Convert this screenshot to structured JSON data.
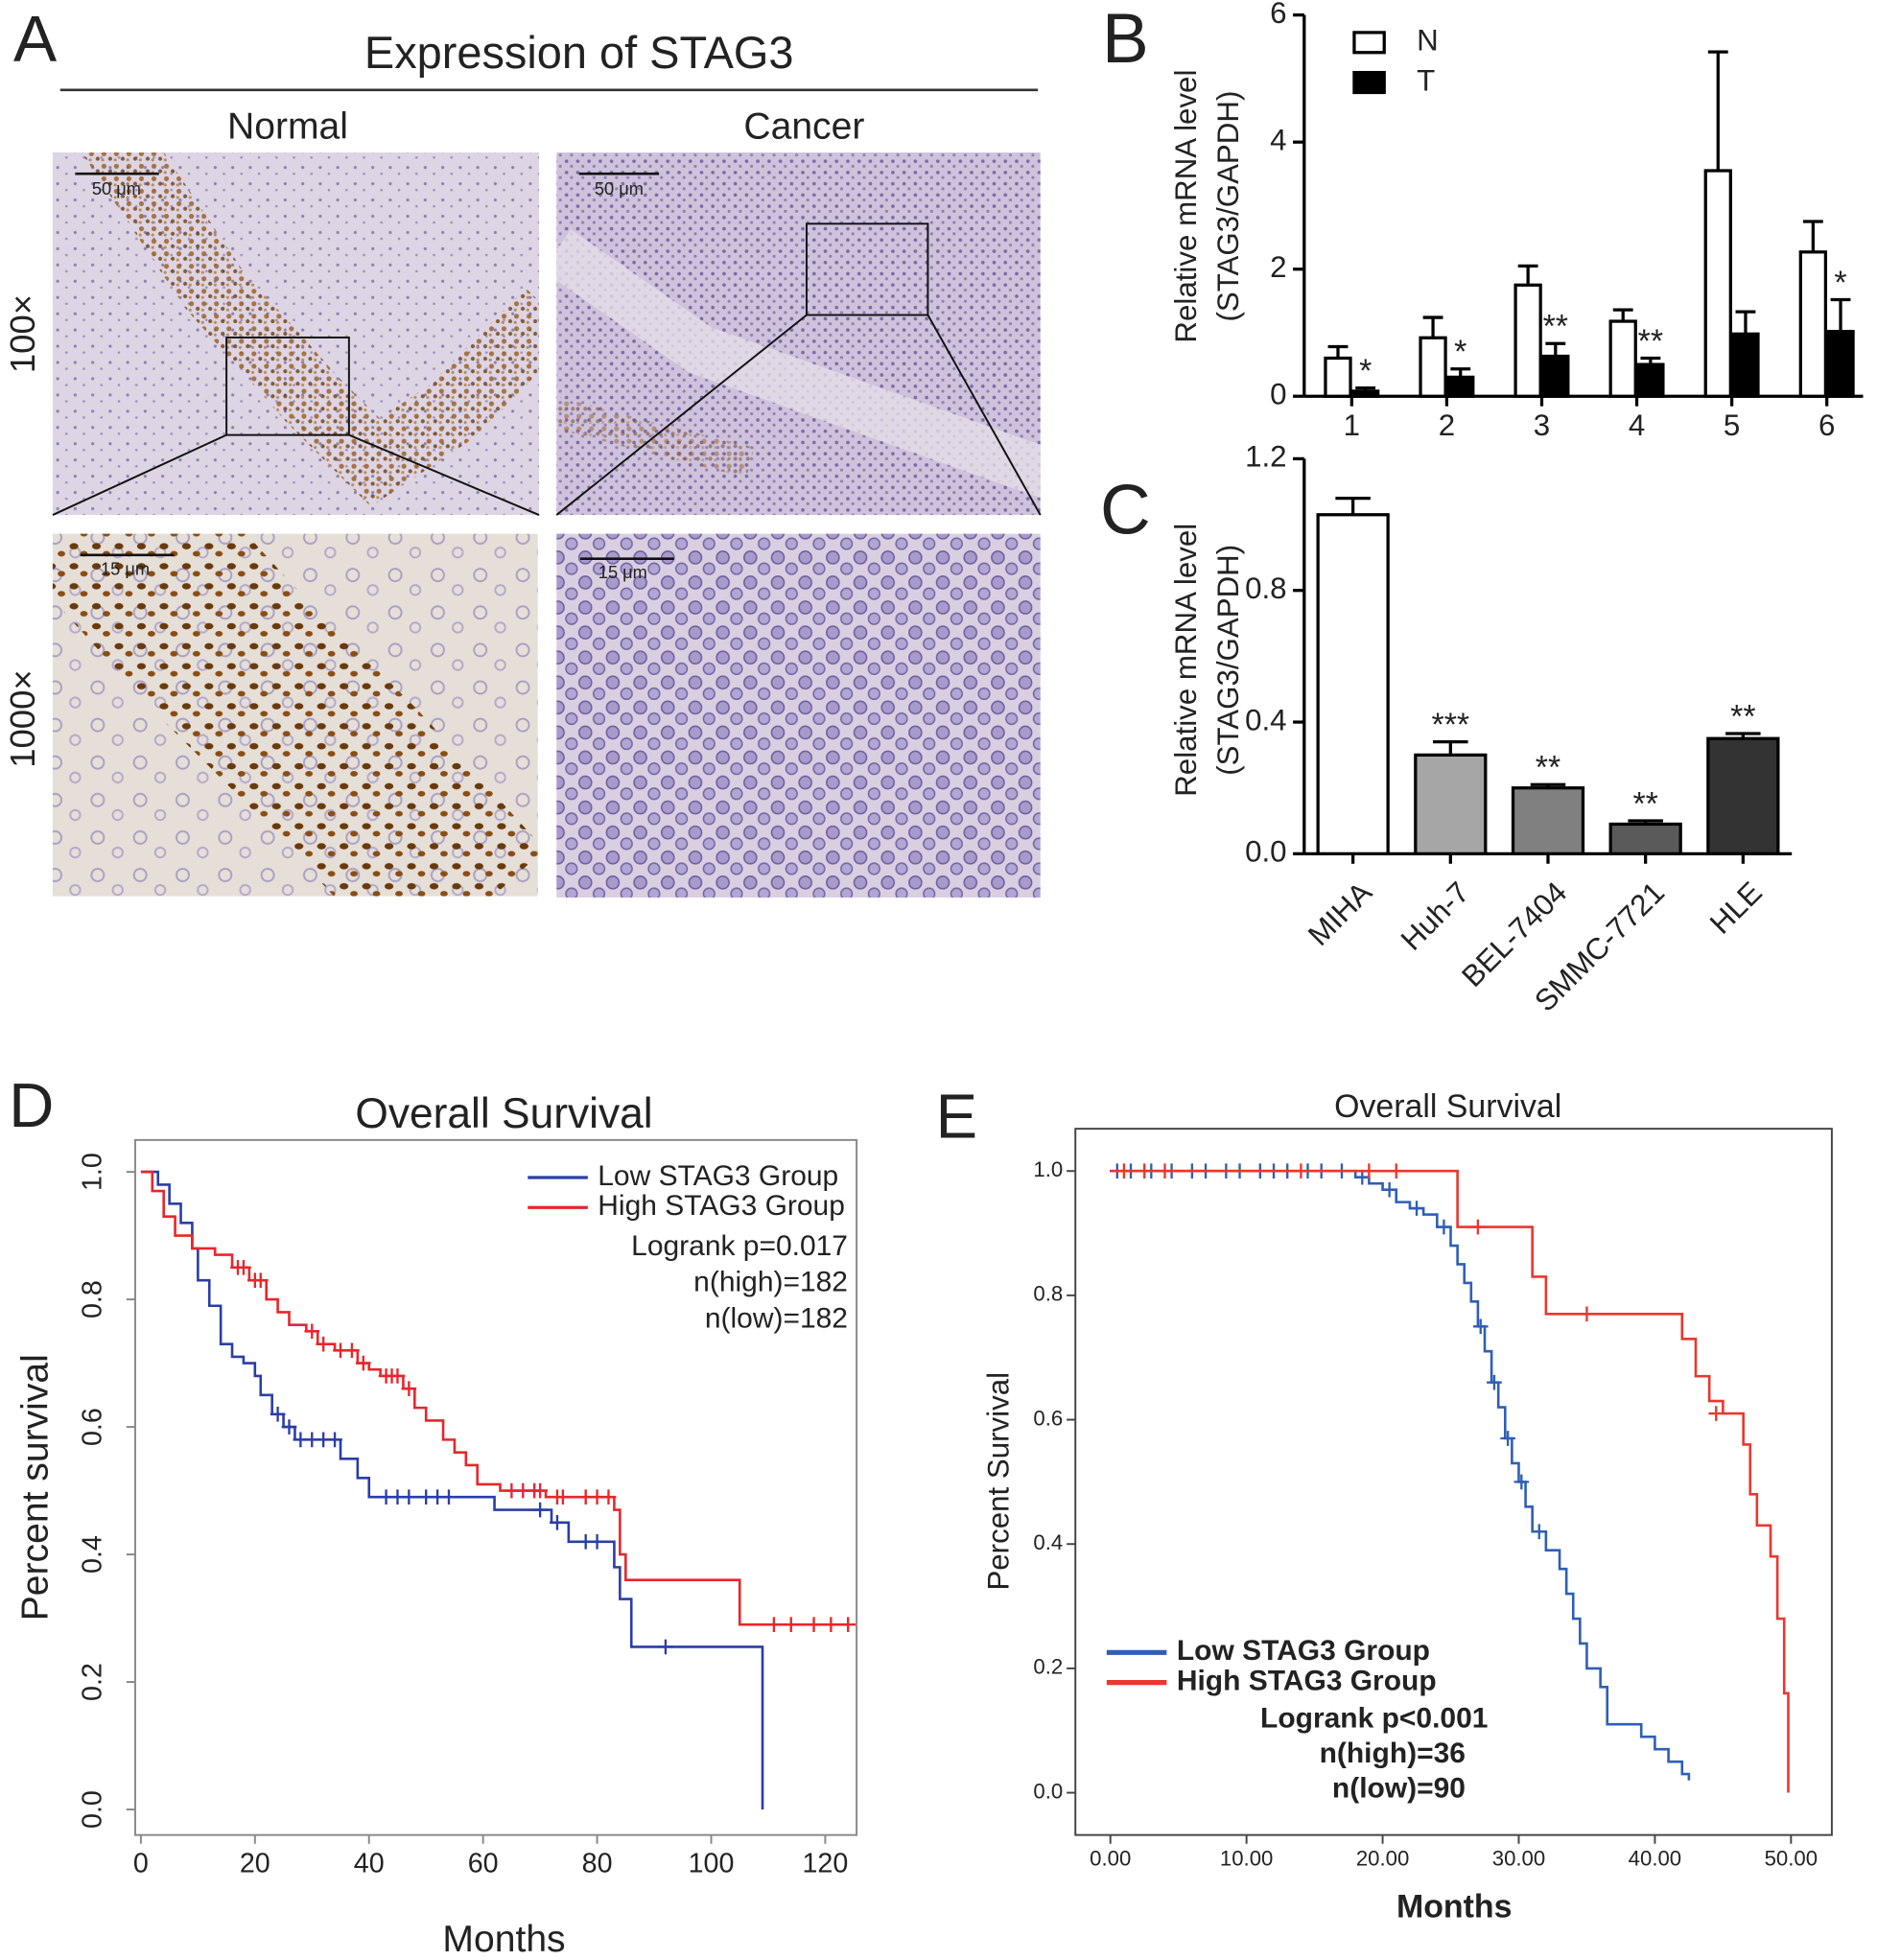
{
  "panel_a": {
    "label": "A",
    "title": "Expression of STAG3",
    "columns": [
      "Normal",
      "Cancer"
    ],
    "rows": [
      "100×",
      "1000×"
    ],
    "scale_bars": [
      "50 μm",
      "50 μm",
      "15 μm",
      "15 μm"
    ]
  },
  "chart_data": [
    {
      "type": "bar",
      "label": "B",
      "ylabel": [
        "Relative mRNA level",
        "(STAG3/GAPDH)"
      ],
      "categories": [
        "1",
        "2",
        "3",
        "4",
        "5",
        "6"
      ],
      "series": [
        {
          "name": "N",
          "color": "#ffffff",
          "values": [
            0.6,
            0.92,
            1.75,
            1.18,
            3.55,
            2.27
          ],
          "errors": [
            0.18,
            0.32,
            0.3,
            0.18,
            1.87,
            0.48
          ]
        },
        {
          "name": "T",
          "color": "#000000",
          "values": [
            0.08,
            0.3,
            0.63,
            0.5,
            0.98,
            1.02
          ],
          "errors": [
            0.05,
            0.13,
            0.2,
            0.1,
            0.35,
            0.5
          ],
          "annotations": [
            "*",
            "*",
            "**",
            "**",
            null,
            "*"
          ]
        }
      ],
      "ylim": [
        0,
        6
      ],
      "yticks": [
        0,
        2,
        4,
        6
      ]
    },
    {
      "type": "bar",
      "label": "C",
      "ylabel": [
        "Relative mRNA level",
        "(STAG3/GAPDH)"
      ],
      "categories": [
        "MIHA",
        "Huh-7",
        "BEL-7404",
        "SMMC-7721",
        "HLE"
      ],
      "series": [
        {
          "colors": [
            "#ffffff",
            "#a6a6a6",
            "#808080",
            "#5a5a5a",
            "#333333"
          ],
          "values": [
            1.03,
            0.3,
            0.2,
            0.09,
            0.35
          ],
          "errors": [
            0.05,
            0.04,
            0.01,
            0.01,
            0.015
          ],
          "annotations": [
            null,
            "***",
            "**",
            "**",
            "**"
          ]
        }
      ],
      "ylim": [
        0,
        1.2
      ],
      "yticks": [
        {
          "value": 0,
          "label": "0.0"
        },
        0.4,
        0.8,
        1.2
      ]
    },
    {
      "type": "survival",
      "label": "D",
      "title": "Overall Survival",
      "xlabel": "Months",
      "ylabel": "Percent survival",
      "series": [
        {
          "name": "Low STAG3 Group",
          "color": "#2b3ea8",
          "x": [
            0,
            3,
            5,
            7,
            9,
            10,
            12,
            14,
            16,
            18,
            20,
            21,
            23,
            25,
            27,
            35,
            38,
            40,
            62,
            72,
            75,
            83,
            84,
            86,
            109
          ],
          "values": [
            1,
            0.98,
            0.95,
            0.92,
            0.88,
            0.83,
            0.79,
            0.73,
            0.71,
            0.7,
            0.68,
            0.65,
            0.62,
            0.6,
            0.58,
            0.55,
            0.52,
            0.49,
            0.47,
            0.45,
            0.42,
            0.38,
            0.33,
            0.255,
            0
          ],
          "censored_x": [
            24,
            26,
            28,
            30,
            32,
            34,
            43,
            45,
            47,
            50,
            52,
            54,
            70,
            73,
            78,
            80,
            92
          ],
          "censored_values": [
            0.62,
            0.6,
            0.58,
            0.58,
            0.58,
            0.58,
            0.49,
            0.49,
            0.49,
            0.49,
            0.49,
            0.49,
            0.47,
            0.45,
            0.42,
            0.42,
            0.255
          ]
        },
        {
          "name": "High STAG3 Group",
          "color": "#e8262b",
          "x": [
            0,
            2,
            4,
            6,
            9,
            13,
            16,
            19,
            22,
            24,
            26,
            29,
            31,
            34,
            38,
            40,
            42,
            46,
            48,
            50,
            53,
            55,
            57,
            59,
            63,
            71,
            83,
            84,
            85,
            105,
            124
          ],
          "values": [
            1,
            0.97,
            0.93,
            0.9,
            0.88,
            0.87,
            0.85,
            0.83,
            0.8,
            0.78,
            0.76,
            0.75,
            0.73,
            0.72,
            0.7,
            0.69,
            0.68,
            0.66,
            0.63,
            0.61,
            0.58,
            0.56,
            0.54,
            0.51,
            0.5,
            0.49,
            0.47,
            0.4,
            0.36,
            0.29,
            0.29
          ],
          "censored_x": [
            17,
            18,
            20,
            21,
            30,
            32,
            35,
            37,
            39,
            43,
            44,
            45,
            47,
            65,
            67,
            69,
            70,
            73,
            74,
            78,
            80,
            82,
            111,
            114,
            118,
            121,
            124
          ],
          "censored_values": [
            0.85,
            0.85,
            0.83,
            0.83,
            0.75,
            0.73,
            0.72,
            0.72,
            0.7,
            0.68,
            0.68,
            0.68,
            0.66,
            0.5,
            0.5,
            0.5,
            0.5,
            0.49,
            0.49,
            0.49,
            0.49,
            0.49,
            0.29,
            0.29,
            0.29,
            0.29,
            0.29
          ]
        }
      ],
      "annotations": [
        "Logrank p=0.017",
        "n(high)=182",
        "n(low)=182"
      ],
      "xlim": [
        -1,
        125.5
      ],
      "xticks": [
        0,
        20,
        40,
        60,
        80,
        100,
        120
      ],
      "ylim": [
        -0.04,
        1.05
      ],
      "yticks": [
        {
          "value": 0,
          "label": "0.0"
        },
        0.2,
        0.4,
        0.6,
        0.8,
        {
          "value": 1,
          "label": "1.0"
        }
      ]
    },
    {
      "type": "survival",
      "label": "E",
      "title": "Overall Survival",
      "xlabel": "Months",
      "ylabel": "Percent Survival",
      "series": [
        {
          "name": "Low STAG3 Group",
          "color": "#2f5fb5",
          "x": [
            0,
            18,
            19,
            20,
            21,
            22,
            23,
            24,
            25,
            25.5,
            26,
            26.5,
            27,
            27.5,
            28,
            28.5,
            29,
            29.5,
            30,
            30.5,
            31,
            32,
            33,
            33.5,
            34,
            34.5,
            35,
            36,
            36.5,
            39,
            40,
            41,
            42,
            42.5
          ],
          "values": [
            1,
            0.99,
            0.98,
            0.97,
            0.95,
            0.94,
            0.93,
            0.91,
            0.88,
            0.85,
            0.82,
            0.79,
            0.75,
            0.71,
            0.66,
            0.62,
            0.57,
            0.53,
            0.5,
            0.46,
            0.42,
            0.39,
            0.36,
            0.32,
            0.28,
            0.24,
            0.2,
            0.17,
            0.11,
            0.09,
            0.07,
            0.05,
            0.03,
            0.02
          ],
          "censored_x": [
            0.5,
            1.5,
            3,
            4.5,
            6,
            7,
            8.5,
            9.5,
            11,
            12,
            13,
            14.5,
            15.5,
            17,
            18.5,
            20.5,
            22.5,
            24.5,
            27.2,
            28.2,
            29.2,
            30.2,
            31.5
          ],
          "censored_values": [
            1,
            1,
            1,
            1,
            1,
            1,
            1,
            1,
            1,
            1,
            1,
            1,
            1,
            1,
            0.99,
            0.97,
            0.94,
            0.91,
            0.75,
            0.66,
            0.57,
            0.5,
            0.42
          ]
        },
        {
          "name": "High STAG3 Group",
          "color": "#e8382f",
          "x": [
            0,
            25.5,
            31,
            32,
            42,
            43,
            44,
            45,
            46.5,
            47,
            47.5,
            48.5,
            49,
            49.5,
            49.8
          ],
          "values": [
            1,
            0.91,
            0.83,
            0.77,
            0.73,
            0.67,
            0.63,
            0.61,
            0.56,
            0.48,
            0.43,
            0.38,
            0.28,
            0.16,
            0
          ],
          "censored_x": [
            1,
            2.5,
            4,
            14,
            19,
            21,
            27,
            35,
            44.5
          ],
          "censored_values": [
            1,
            1,
            1,
            1,
            1,
            1,
            0.91,
            0.77,
            0.61
          ]
        }
      ],
      "annotations": [
        "Logrank p<0.001",
        "n(high)=36",
        "n(low)=90"
      ],
      "xlim": [
        -2.57,
        53
      ],
      "xticks": [
        {
          "value": 0,
          "label": "0.00"
        },
        {
          "value": 10,
          "label": "10.00"
        },
        {
          "value": 20,
          "label": "20.00"
        },
        {
          "value": 30,
          "label": "30.00"
        },
        {
          "value": 40,
          "label": "40.00"
        },
        {
          "value": 50,
          "label": "50.00"
        }
      ],
      "ylim": [
        -0.068,
        1.068
      ],
      "yticks": [
        {
          "value": 0,
          "label": "0.0"
        },
        0.2,
        0.4,
        0.6,
        0.8,
        {
          "value": 1,
          "label": "1.0"
        }
      ]
    }
  ]
}
